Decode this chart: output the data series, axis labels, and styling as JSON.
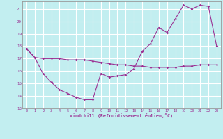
{
  "xlabel": "Windchill (Refroidissement éolien,°C)",
  "hours": [
    0,
    1,
    2,
    3,
    4,
    5,
    6,
    7,
    8,
    9,
    10,
    11,
    12,
    13,
    14,
    15,
    16,
    17,
    18,
    19,
    20,
    21,
    22,
    23
  ],
  "temp": [
    17.8,
    17.1,
    17.0,
    17.0,
    17.0,
    16.9,
    16.9,
    16.9,
    16.8,
    16.7,
    16.6,
    16.5,
    16.5,
    16.4,
    16.4,
    16.3,
    16.3,
    16.3,
    16.3,
    16.4,
    16.4,
    16.5,
    16.5,
    16.5
  ],
  "windchill": [
    17.8,
    17.1,
    15.8,
    15.1,
    14.5,
    14.2,
    13.9,
    13.7,
    13.7,
    15.8,
    15.5,
    15.6,
    15.7,
    16.2,
    17.6,
    18.2,
    19.5,
    19.1,
    20.2,
    21.3,
    21.0,
    21.3,
    21.2,
    18.0
  ],
  "line_color": "#9B3093",
  "bg_color": "#C2EEF0",
  "grid_color": "#FFFFFF",
  "ylim": [
    13,
    21.6
  ],
  "xlim": [
    -0.5,
    23.5
  ],
  "yticks": [
    13,
    14,
    15,
    16,
    17,
    18,
    19,
    20,
    21
  ],
  "xticks": [
    0,
    1,
    2,
    3,
    4,
    5,
    6,
    7,
    8,
    9,
    10,
    11,
    12,
    13,
    14,
    15,
    16,
    17,
    18,
    19,
    20,
    21,
    22,
    23
  ]
}
